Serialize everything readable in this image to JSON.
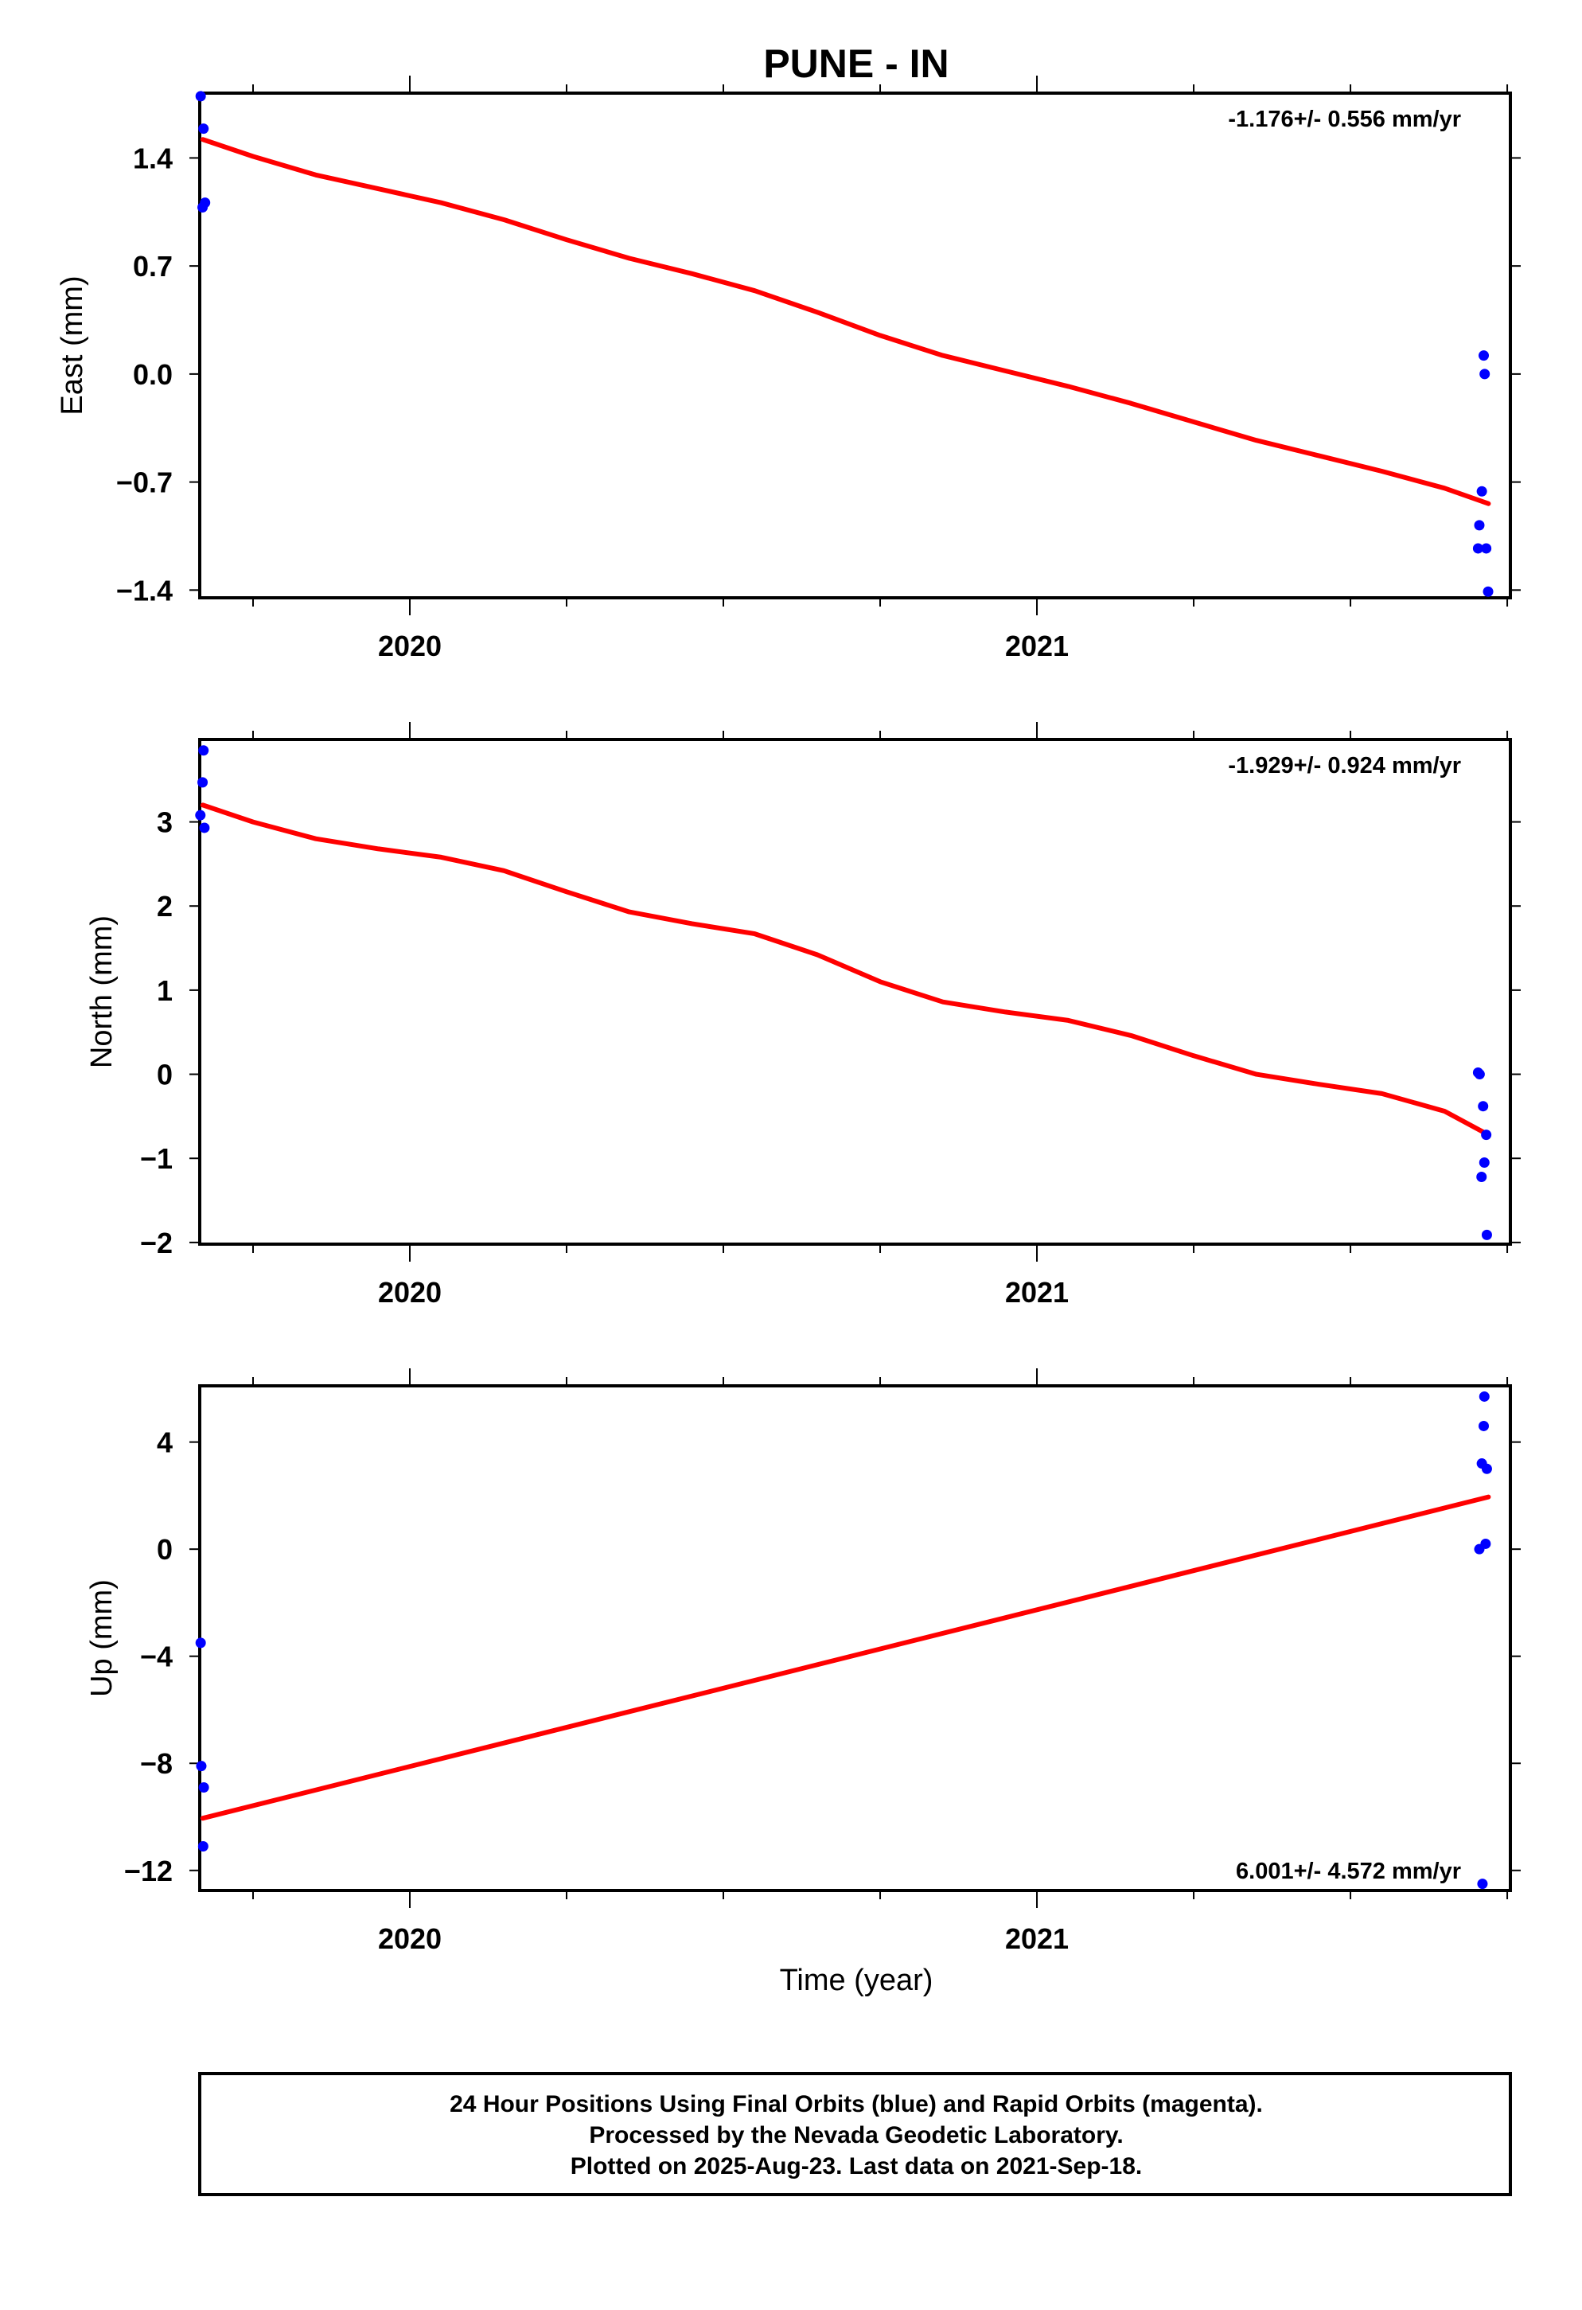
{
  "chart_data": {
    "title": "PUNE - IN",
    "xlabel": "Time (year)",
    "colors": {
      "final": "#0000ff",
      "fit": "#ff0000"
    },
    "type": "scatter",
    "panels": [
      {
        "ylabel": "East (mm)",
        "yticks": [
          {
            "v": 1.4,
            "label": "1.4"
          },
          {
            "v": 0.7,
            "label": "0.7"
          },
          {
            "v": 0.0,
            "label": "0.0"
          },
          {
            "v": -0.7,
            "label": "−0.7"
          },
          {
            "v": -1.4,
            "label": "−1.4"
          }
        ],
        "ylim": [
          -1.45,
          1.82
        ],
        "rate": "-1.176+/- 0.556 mm/yr",
        "rate_pos": "top",
        "points": [
          [
            2019.6665,
            1.8
          ],
          [
            2019.671,
            1.59
          ],
          [
            2019.6735,
            1.11
          ],
          [
            2019.6695,
            1.08
          ],
          [
            2021.7125,
            0.12
          ],
          [
            2021.714,
            0.0
          ],
          [
            2021.7095,
            -0.76
          ],
          [
            2021.7055,
            -0.98
          ],
          [
            2021.7035,
            -1.13
          ],
          [
            2021.7165,
            -1.13
          ],
          [
            2021.7195,
            -1.41
          ]
        ],
        "fit": [
          [
            2019.67,
            1.52
          ],
          [
            2019.75,
            1.41
          ],
          [
            2019.85,
            1.29
          ],
          [
            2019.95,
            1.2
          ],
          [
            2020.05,
            1.11
          ],
          [
            2020.15,
            1.0
          ],
          [
            2020.25,
            0.87
          ],
          [
            2020.35,
            0.75
          ],
          [
            2020.45,
            0.65
          ],
          [
            2020.55,
            0.54
          ],
          [
            2020.65,
            0.4
          ],
          [
            2020.75,
            0.25
          ],
          [
            2020.85,
            0.12
          ],
          [
            2020.95,
            0.02
          ],
          [
            2021.05,
            -0.08
          ],
          [
            2021.15,
            -0.19
          ],
          [
            2021.25,
            -0.31
          ],
          [
            2021.35,
            -0.43
          ],
          [
            2021.45,
            -0.53
          ],
          [
            2021.55,
            -0.63
          ],
          [
            2021.65,
            -0.74
          ],
          [
            2021.72,
            -0.84
          ]
        ]
      },
      {
        "ylabel": "North (mm)",
        "yticks": [
          {
            "v": 3,
            "label": "3"
          },
          {
            "v": 2,
            "label": "2"
          },
          {
            "v": 1,
            "label": "1"
          },
          {
            "v": 0,
            "label": "0"
          },
          {
            "v": -1,
            "label": "−1"
          },
          {
            "v": -2,
            "label": "−2"
          }
        ],
        "ylim": [
          -2.02,
          3.98
        ],
        "rate": "-1.929+/- 0.924 mm/yr",
        "rate_pos": "top",
        "points": [
          [
            2019.671,
            3.85
          ],
          [
            2019.6695,
            3.47
          ],
          [
            2019.666,
            3.08
          ],
          [
            2019.6725,
            2.93
          ],
          [
            2021.7035,
            0.02
          ],
          [
            2021.706,
            0.0
          ],
          [
            2021.7115,
            -0.38
          ],
          [
            2021.7165,
            -0.72
          ],
          [
            2021.7135,
            -1.05
          ],
          [
            2021.709,
            -1.22
          ],
          [
            2021.7175,
            -1.91
          ]
        ],
        "fit": [
          [
            2019.67,
            3.2
          ],
          [
            2019.75,
            3.0
          ],
          [
            2019.85,
            2.8
          ],
          [
            2019.95,
            2.68
          ],
          [
            2020.05,
            2.58
          ],
          [
            2020.15,
            2.42
          ],
          [
            2020.25,
            2.17
          ],
          [
            2020.35,
            1.93
          ],
          [
            2020.45,
            1.79
          ],
          [
            2020.55,
            1.67
          ],
          [
            2020.65,
            1.42
          ],
          [
            2020.75,
            1.1
          ],
          [
            2020.85,
            0.86
          ],
          [
            2020.95,
            0.74
          ],
          [
            2021.05,
            0.64
          ],
          [
            2021.15,
            0.46
          ],
          [
            2021.25,
            0.22
          ],
          [
            2021.35,
            0.0
          ],
          [
            2021.45,
            -0.12
          ],
          [
            2021.55,
            -0.23
          ],
          [
            2021.65,
            -0.44
          ],
          [
            2021.72,
            -0.72
          ]
        ]
      },
      {
        "ylabel": "Up (mm)",
        "yticks": [
          {
            "v": 4,
            "label": "4"
          },
          {
            "v": 0,
            "label": "0"
          },
          {
            "v": -4,
            "label": "−4"
          },
          {
            "v": -8,
            "label": "−8"
          },
          {
            "v": -12,
            "label": "−12"
          }
        ],
        "ylim": [
          -12.75,
          6.1
        ],
        "rate": "6.001+/- 4.572 mm/yr",
        "rate_pos": "bottom",
        "points": [
          [
            2019.6665,
            -3.5
          ],
          [
            2019.6675,
            -8.1
          ],
          [
            2019.6715,
            -8.9
          ],
          [
            2019.6705,
            -11.1
          ],
          [
            2021.7135,
            5.7
          ],
          [
            2021.7125,
            4.6
          ],
          [
            2021.7095,
            3.2
          ],
          [
            2021.7175,
            3.0
          ],
          [
            2021.7155,
            0.2
          ],
          [
            2021.7055,
            0.0
          ],
          [
            2021.7105,
            -12.5
          ]
        ],
        "fit": [
          [
            2019.67,
            -10.05
          ],
          [
            2021.72,
            1.95
          ]
        ]
      }
    ],
    "xlim": [
      2019.665,
      2021.755
    ],
    "xticks": [
      {
        "v": 2020.0,
        "label": "2020"
      },
      {
        "v": 2021.0,
        "label": "2021"
      }
    ],
    "xminor": [
      2019.75,
      2020.25,
      2020.5,
      2020.75,
      2021.25,
      2021.5,
      2021.75
    ],
    "footer": [
      "24 Hour Positions Using Final Orbits (blue) and Rapid Orbits (magenta).",
      "Processed by the Nevada Geodetic Laboratory.",
      "Plotted on 2025-Aug-23. Last data on 2021-Sep-18."
    ]
  }
}
